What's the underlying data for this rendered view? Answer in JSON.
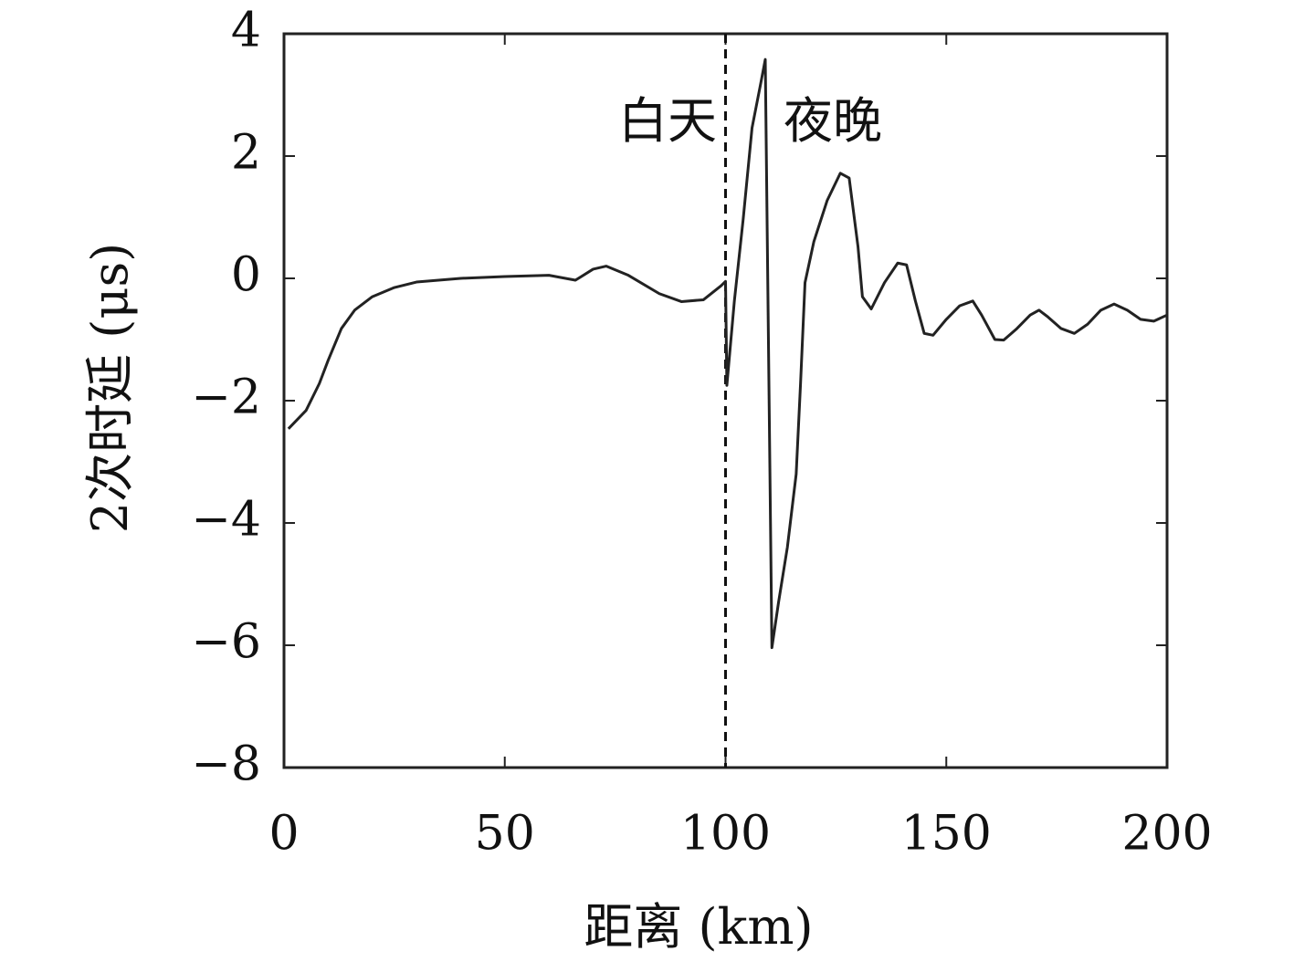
{
  "chart_data": {
    "type": "line",
    "xlabel": "距离 (km)",
    "ylabel": "2次时延 (μs)",
    "annotations": [
      "白天",
      "夜晚"
    ],
    "divider_x": 100,
    "x": [
      1,
      5,
      8,
      10,
      13,
      16,
      20,
      25,
      30,
      40,
      50,
      60,
      66,
      70,
      73,
      78,
      85,
      90,
      95,
      99,
      100,
      100.3,
      102,
      104,
      106,
      108,
      109,
      110.5,
      112,
      114,
      116,
      117,
      118,
      120,
      123,
      126,
      128,
      130,
      131,
      133,
      136,
      139,
      141,
      143,
      145,
      147,
      150,
      153,
      156,
      158,
      161,
      163,
      166,
      169,
      171,
      173,
      176,
      179,
      182,
      185,
      188,
      191,
      194,
      197,
      200
    ],
    "series": [
      {
        "name": "2次时延",
        "color": "#222222",
        "values": [
          -2.46,
          -2.16,
          -1.72,
          -1.34,
          -0.82,
          -0.52,
          -0.3,
          -0.15,
          -0.06,
          0.0,
          0.03,
          0.05,
          -0.03,
          0.15,
          0.2,
          0.05,
          -0.25,
          -0.38,
          -0.35,
          -0.12,
          -0.05,
          -1.75,
          -0.37,
          0.97,
          2.46,
          3.2,
          3.58,
          -6.04,
          -5.3,
          -4.4,
          -3.2,
          -1.7,
          -0.07,
          0.6,
          1.27,
          1.72,
          1.64,
          0.52,
          -0.3,
          -0.5,
          -0.07,
          0.25,
          0.22,
          -0.37,
          -0.9,
          -0.93,
          -0.67,
          -0.45,
          -0.37,
          -0.6,
          -1.0,
          -1.01,
          -0.82,
          -0.6,
          -0.52,
          -0.63,
          -0.82,
          -0.9,
          -0.75,
          -0.52,
          -0.42,
          -0.52,
          -0.67,
          -0.7,
          -0.6
        ]
      }
    ],
    "xlim": [
      0,
      200
    ],
    "xticks": [
      0,
      50,
      100,
      150,
      200
    ],
    "ylim": [
      -8,
      4
    ],
    "yticks": [
      {
        "value": -8,
        "label": "−8"
      },
      {
        "value": -6,
        "label": "−6"
      },
      {
        "value": -4,
        "label": "−4"
      },
      {
        "value": -2,
        "label": "−2"
      },
      0,
      2,
      4
    ],
    "grid": false
  }
}
